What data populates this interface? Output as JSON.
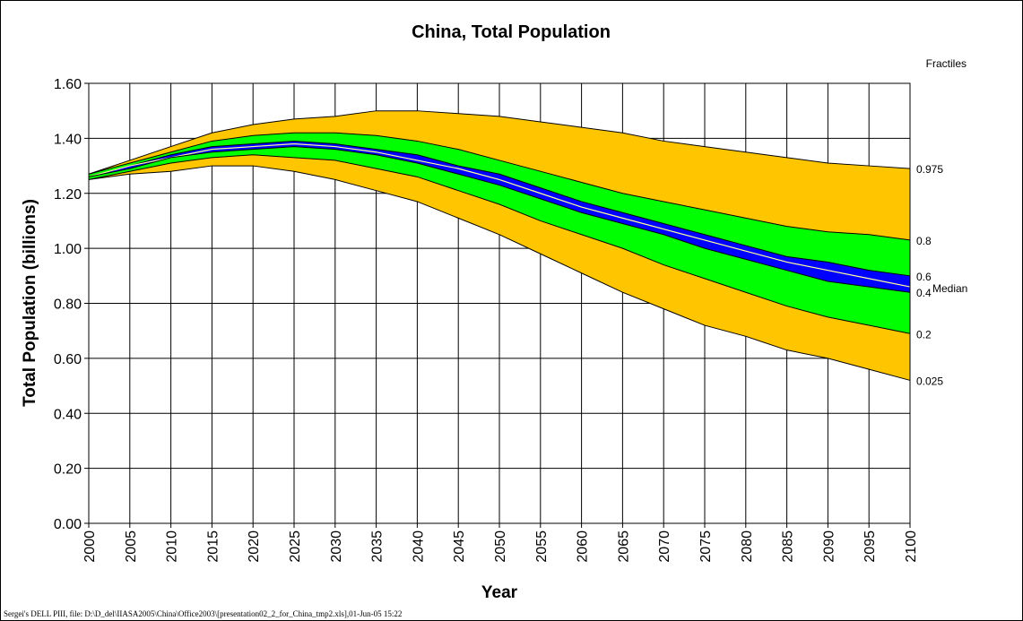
{
  "chart_data": {
    "type": "area",
    "title": "China, Total Population",
    "xlabel": "Year",
    "ylabel": "Total Population (billions)",
    "xlim": [
      2000,
      2100
    ],
    "ylim": [
      0,
      1.6
    ],
    "x_ticks": [
      "2000",
      "2005",
      "2010",
      "2015",
      "2020",
      "2025",
      "2030",
      "2035",
      "2040",
      "2045",
      "2050",
      "2055",
      "2060",
      "2065",
      "2070",
      "2075",
      "2080",
      "2085",
      "2090",
      "2095",
      "2100"
    ],
    "y_ticks": [
      "0.00",
      "0.20",
      "0.40",
      "0.60",
      "0.80",
      "1.00",
      "1.20",
      "1.40",
      "1.60"
    ],
    "grid": true,
    "legend_title": "Fractiles",
    "median_label": "Median",
    "x": [
      2000,
      2005,
      2010,
      2015,
      2020,
      2025,
      2030,
      2035,
      2040,
      2045,
      2050,
      2055,
      2060,
      2065,
      2070,
      2075,
      2080,
      2085,
      2090,
      2095,
      2100
    ],
    "series": [
      {
        "name": "0.975",
        "values": [
          1.27,
          1.32,
          1.37,
          1.42,
          1.45,
          1.47,
          1.48,
          1.5,
          1.5,
          1.49,
          1.48,
          1.46,
          1.44,
          1.42,
          1.39,
          1.37,
          1.35,
          1.33,
          1.31,
          1.3,
          1.29
        ]
      },
      {
        "name": "0.8",
        "values": [
          1.27,
          1.31,
          1.35,
          1.39,
          1.41,
          1.42,
          1.42,
          1.41,
          1.39,
          1.36,
          1.32,
          1.28,
          1.24,
          1.2,
          1.17,
          1.14,
          1.11,
          1.08,
          1.06,
          1.05,
          1.03
        ]
      },
      {
        "name": "0.6",
        "values": [
          1.26,
          1.3,
          1.34,
          1.37,
          1.38,
          1.39,
          1.38,
          1.36,
          1.34,
          1.3,
          1.27,
          1.22,
          1.17,
          1.13,
          1.09,
          1.05,
          1.01,
          0.97,
          0.95,
          0.92,
          0.9
        ]
      },
      {
        "name": "Median",
        "values": [
          1.26,
          1.3,
          1.33,
          1.36,
          1.37,
          1.38,
          1.37,
          1.35,
          1.32,
          1.29,
          1.25,
          1.2,
          1.15,
          1.11,
          1.07,
          1.03,
          0.99,
          0.95,
          0.92,
          0.89,
          0.86
        ]
      },
      {
        "name": "0.4",
        "values": [
          1.26,
          1.29,
          1.33,
          1.35,
          1.36,
          1.37,
          1.36,
          1.34,
          1.31,
          1.27,
          1.23,
          1.18,
          1.13,
          1.09,
          1.05,
          1.0,
          0.96,
          0.92,
          0.88,
          0.86,
          0.84
        ]
      },
      {
        "name": "0.2",
        "values": [
          1.25,
          1.28,
          1.31,
          1.33,
          1.34,
          1.33,
          1.32,
          1.29,
          1.26,
          1.21,
          1.16,
          1.1,
          1.05,
          1.0,
          0.94,
          0.89,
          0.84,
          0.79,
          0.75,
          0.72,
          0.69
        ]
      },
      {
        "name": "0.025",
        "values": [
          1.25,
          1.27,
          1.28,
          1.3,
          1.3,
          1.28,
          1.25,
          1.21,
          1.17,
          1.11,
          1.05,
          0.98,
          0.91,
          0.84,
          0.78,
          0.72,
          0.68,
          0.63,
          0.6,
          0.56,
          0.52
        ]
      }
    ],
    "band_colors": {
      "outer": "#ffc600",
      "middle": "#00ff00",
      "inner": "#0000ff",
      "median_line": "#ffff99",
      "edge": "#000000"
    }
  },
  "footer_text": "Sergei's DELL PIII, file: D:\\D_del\\IIASA2005\\China\\Office2003\\[presentation02_2_for_China_tmp2.xls],01-Jun-05    15:22"
}
